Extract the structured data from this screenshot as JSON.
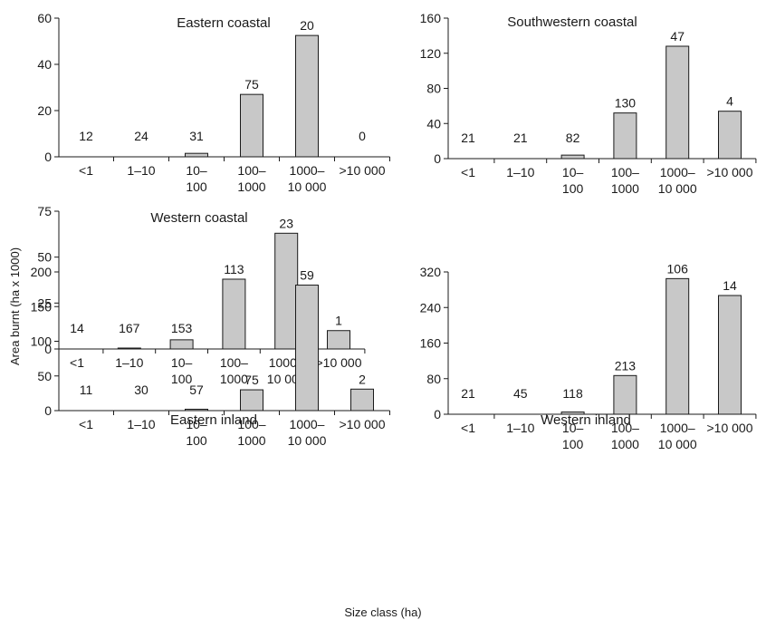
{
  "ylabel": "Area burnt (ha x 1000)",
  "xlabel": "Size class (ha)",
  "colors": {
    "bar_fill": "#c8c8c8",
    "stroke": "#1a1a1a"
  },
  "chart_data": [
    {
      "type": "bar",
      "title": "Eastern coastal",
      "categories": [
        "<1",
        "1–10",
        "10–\n100",
        "100–\n1000",
        "1000–\n10 000",
        ">10 000"
      ],
      "values": [
        0,
        0,
        1.5,
        27,
        52.5,
        0
      ],
      "data_labels": [
        "12",
        "24",
        "31",
        "75",
        "20",
        "0"
      ],
      "ylim": [
        0,
        60
      ],
      "yticks": [
        0,
        20,
        40,
        60
      ]
    },
    {
      "type": "bar",
      "title": "Southwestern coastal",
      "categories": [
        "<1",
        "1–10",
        "10–\n100",
        "100–\n1000",
        "1000–\n10 000",
        ">10 000"
      ],
      "values": [
        0,
        0,
        4,
        52,
        128,
        54
      ],
      "data_labels": [
        "21",
        "21",
        "82",
        "130",
        "47",
        "4"
      ],
      "ylim": [
        0,
        160
      ],
      "yticks": [
        0,
        40,
        80,
        120,
        160
      ]
    },
    {
      "type": "bar",
      "title": "Western coastal",
      "categories": [
        "<1",
        "1–10",
        "10–\n100",
        "100–\n1000",
        "1000–\n10 000",
        ">10 000"
      ],
      "values": [
        0,
        0.5,
        5,
        38,
        63,
        10
      ],
      "data_labels": [
        "14",
        "167",
        "153",
        "113",
        "23",
        "1"
      ],
      "ylim": [
        0,
        75
      ],
      "yticks": [
        0,
        25,
        50,
        75
      ]
    },
    {
      "type": "bar",
      "title": "Eastern inland",
      "categories": [
        "<1",
        "1–10",
        "10–\n100",
        "100–\n1000",
        "1000–\n10 000",
        ">10 000"
      ],
      "values": [
        0,
        0,
        2,
        30,
        181,
        31
      ],
      "data_labels": [
        "11",
        "30",
        "57",
        "75",
        "59",
        "2"
      ],
      "ylim": [
        0,
        200
      ],
      "yticks": [
        0,
        50,
        100,
        150,
        200
      ]
    },
    {
      "type": "bar",
      "title": "Western inland",
      "categories": [
        "<1",
        "1–10",
        "10–\n100",
        "100–\n1000",
        "1000–\n10 000",
        ">10 000"
      ],
      "values": [
        0,
        0,
        5,
        87,
        305,
        267
      ],
      "data_labels": [
        "21",
        "45",
        "118",
        "213",
        "106",
        "14"
      ],
      "ylim": [
        0,
        320
      ],
      "yticks": [
        0,
        80,
        160,
        240,
        320
      ]
    }
  ]
}
